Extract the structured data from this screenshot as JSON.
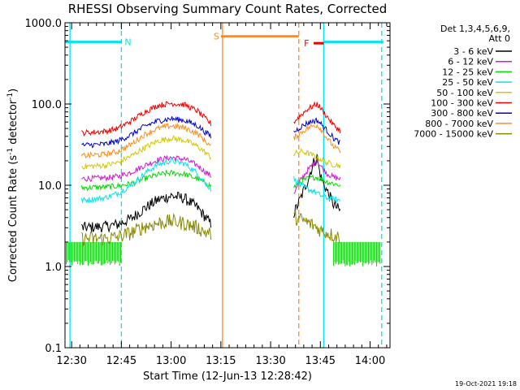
{
  "chart_data": {
    "type": "line",
    "title": "RHESSI Observing Summary Count Rates, Corrected",
    "xlabel": "Start Time (12-Jun-13 12:28:42)",
    "ylabel_main": "Corrected Count Rate (s",
    "ylabel_sup1": "-1",
    "ylabel_mid": " detector",
    "ylabel_sup2": "-1",
    "ylabel_end": ")",
    "ylim": [
      0.1,
      1000
    ],
    "yscale": "log",
    "xlim_minutes": [
      -2,
      96
    ],
    "x_ticks": [
      {
        "minute": 0,
        "label": "12:30"
      },
      {
        "minute": 15,
        "label": "12:45"
      },
      {
        "minute": 30,
        "label": "13:00"
      },
      {
        "minute": 45,
        "label": "13:15"
      },
      {
        "minute": 60,
        "label": "13:30"
      },
      {
        "minute": 75,
        "label": "13:45"
      },
      {
        "minute": 90,
        "label": "14:00"
      }
    ],
    "y_ticks": [
      {
        "value": 1000,
        "label": "1000.0"
      },
      {
        "value": 100,
        "label": "100.0"
      },
      {
        "value": 10,
        "label": "10.0"
      },
      {
        "value": 1,
        "label": "1.0"
      },
      {
        "value": 0.1,
        "label": "0.1"
      }
    ],
    "legend_header": [
      "Det 1,3,4,5,6,9,",
      "Att 0"
    ],
    "series": [
      {
        "name": "3 - 6 keV",
        "color": "#000000",
        "segments": [
          {
            "t": [
              3,
              10,
              14,
              18,
              22,
              26,
              30,
              34,
              38,
              40,
              42
            ],
            "v": [
              3.0,
              3.1,
              3.3,
              3.9,
              5.2,
              6.6,
              7.4,
              6.9,
              5.3,
              4.2,
              3.3
            ]
          },
          {
            "t": [
              67,
              69,
              71,
              73,
              74,
              75,
              77,
              79,
              81
            ],
            "v": [
              4.5,
              6.8,
              11,
              19,
              22,
              13,
              8.5,
              5.8,
              4.8
            ]
          }
        ]
      },
      {
        "name": "6 - 12 keV",
        "color": "#d01cd0",
        "segments": [
          {
            "t": [
              3,
              10,
              14,
              18,
              22,
              26,
              30,
              34,
              38,
              40,
              42
            ],
            "v": [
              12,
              12.3,
              12.8,
              14.5,
              17.5,
              20.5,
              22,
              21,
              17.5,
              15,
              13
            ]
          },
          {
            "t": [
              67,
              69,
              71,
              73,
              74,
              75,
              77,
              79,
              81
            ],
            "v": [
              8,
              11.5,
              15,
              18.5,
              20,
              17.5,
              14,
              12.5,
              12
            ]
          }
        ]
      },
      {
        "name": "12 - 25 keV",
        "color": "#00dd00",
        "segments": [
          {
            "t": [
              3,
              10,
              14,
              18,
              22,
              26,
              30,
              34,
              38,
              40,
              42
            ],
            "v": [
              9.3,
              9.5,
              9.8,
              10.5,
              12,
              13.5,
              14.2,
              13.7,
              12,
              10.8,
              9.8
            ]
          },
          {
            "t": [
              67,
              69,
              71,
              73,
              74,
              75,
              77,
              79,
              81
            ],
            "v": [
              9.5,
              11,
              12,
              12.5,
              12.5,
              12,
              11,
              10.5,
              10
            ]
          }
        ]
      },
      {
        "name": "25 - 50 keV",
        "color": "#00e5ee",
        "segments": [
          {
            "t": [
              3,
              10,
              14,
              18,
              22,
              26,
              30,
              34,
              38,
              40,
              42
            ],
            "v": [
              6.5,
              7,
              8,
              10,
              14,
              18,
              20,
              18.5,
              14,
              11,
              9
            ]
          },
          {
            "t": [
              67,
              69,
              71,
              73,
              74,
              75,
              77,
              79,
              81
            ],
            "v": [
              12,
              10,
              9,
              8.5,
              8,
              7.5,
              7,
              6.8,
              6.5
            ]
          }
        ]
      },
      {
        "name": "50 - 100 keV",
        "color": "#d4c800",
        "segments": [
          {
            "t": [
              3,
              10,
              14,
              18,
              22,
              26,
              30,
              34,
              38,
              40,
              42
            ],
            "v": [
              17,
              17.5,
              19,
              23,
              29,
              35,
              38,
              36,
              30,
              26,
              22
            ]
          },
          {
            "t": [
              67,
              69,
              71,
              73,
              74,
              75,
              77,
              79,
              81
            ],
            "v": [
              24,
              26,
              25,
              23,
              22,
              21,
              19,
              18,
              17.5
            ]
          }
        ]
      },
      {
        "name": "100 - 300 keV",
        "color": "#ee0000",
        "segments": [
          {
            "t": [
              3,
              10,
              14,
              18,
              22,
              26,
              30,
              34,
              38,
              40,
              42
            ],
            "v": [
              44,
              46,
              50,
              62,
              80,
              96,
              102,
              98,
              82,
              68,
              57
            ]
          },
          {
            "t": [
              67,
              69,
              71,
              73,
              74,
              75,
              77,
              79,
              81
            ],
            "v": [
              60,
              72,
              86,
              95,
              100,
              90,
              70,
              55,
              47
            ]
          }
        ]
      },
      {
        "name": "300 - 800 keV",
        "color": "#0000cc",
        "segments": [
          {
            "t": [
              3,
              10,
              14,
              18,
              22,
              26,
              30,
              34,
              38,
              40,
              42
            ],
            "v": [
              31,
              32,
              35,
              42,
              53,
              62,
              66,
              63,
              54,
              46,
              40
            ]
          },
          {
            "t": [
              67,
              69,
              71,
              73,
              74,
              75,
              77,
              79,
              81
            ],
            "v": [
              45,
              52,
              58,
              62,
              63,
              58,
              47,
              38,
              33
            ]
          }
        ]
      },
      {
        "name": "800 - 7000 keV",
        "color": "#ff8c1a",
        "segments": [
          {
            "t": [
              3,
              10,
              14,
              18,
              22,
              26,
              30,
              34,
              38,
              40,
              42
            ],
            "v": [
              23,
              24,
              26,
              32,
              42,
              50,
              54,
              51,
              43,
              36,
              30
            ]
          },
          {
            "t": [
              67,
              69,
              71,
              73,
              74,
              75,
              77,
              79,
              81
            ],
            "v": [
              38,
              44,
              50,
              54,
              55,
              50,
              38,
              30,
              26
            ]
          }
        ]
      },
      {
        "name": "7000 - 15000 keV",
        "color": "#888800",
        "segments": [
          {
            "t": [
              3,
              10,
              14,
              18,
              22,
              26,
              30,
              34,
              38,
              40,
              42
            ],
            "v": [
              2.2,
              2.2,
              2.3,
              2.6,
              3.1,
              3.4,
              3.6,
              3.4,
              3.0,
              2.7,
              2.5
            ]
          },
          {
            "t": [
              67,
              69,
              71,
              73,
              74,
              75,
              77,
              79,
              81
            ],
            "v": [
              4.0,
              3.8,
              3.5,
              3.2,
              3.0,
              2.8,
              2.6,
              2.4,
              2.3
            ]
          }
        ]
      }
    ],
    "flag_bars": [
      {
        "label": "N",
        "color": "#00e5ee",
        "segments": [
          [
            -2,
            15
          ],
          [
            76,
            94
          ]
        ],
        "value": 580
      },
      {
        "label": "S",
        "color": "#ff8c1a",
        "segments": [
          [
            45,
            68.5
          ]
        ],
        "value": 680
      },
      {
        "label": "F",
        "color": "#ee0000",
        "segments": [
          [
            73,
            76
          ]
        ],
        "value": 560
      }
    ],
    "vertical_lines": [
      {
        "minute": -0.5,
        "color": "#00e5ee",
        "style": "solid"
      },
      {
        "minute": 15,
        "color": "#00e5ee",
        "style": "dashed"
      },
      {
        "minute": 45.5,
        "color": "#ff8c1a",
        "style": "solid"
      },
      {
        "minute": 68.5,
        "color": "#ff8c1a",
        "style": "dashed"
      },
      {
        "minute": 76,
        "color": "#00e5ee",
        "style": "solid"
      },
      {
        "minute": 93.5,
        "color": "#00e5ee",
        "style": "dashed"
      }
    ],
    "low_level_fills": [
      {
        "color": "#00dd00",
        "segments": [
          [
            -2,
            15
          ],
          [
            79,
            93
          ]
        ]
      }
    ],
    "grid": false,
    "legend_position": "right"
  },
  "footer": {
    "timestamp": "19-Oct-2021 19:18"
  }
}
